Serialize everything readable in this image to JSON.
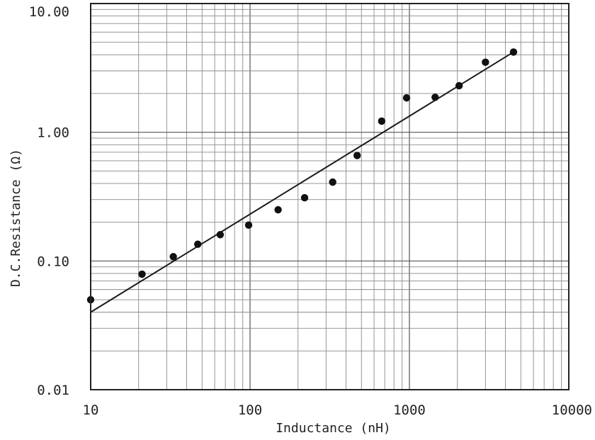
{
  "chart_data": {
    "type": "scatter",
    "xlabel": "Inductance (nH)",
    "ylabel": "D.C.Resistance (Ω)",
    "x_scale": "log",
    "y_scale": "log",
    "xlim": [
      10,
      10000
    ],
    "ylim": [
      0.01,
      10
    ],
    "grid": true,
    "x_ticks": [
      {
        "value": 10,
        "label": "10"
      },
      {
        "value": 100,
        "label": "100"
      },
      {
        "value": 1000,
        "label": "1000"
      },
      {
        "value": 10000,
        "label": "10000"
      }
    ],
    "y_ticks": [
      {
        "value": 0.01,
        "label": "0.01"
      },
      {
        "value": 0.1,
        "label": "0.10"
      },
      {
        "value": 1,
        "label": "1.00"
      },
      {
        "value": 10,
        "label": "10.00"
      }
    ],
    "series": [
      {
        "points": [
          {
            "x": 10,
            "y": 0.05
          },
          {
            "x": 21,
            "y": 0.079
          },
          {
            "x": 33,
            "y": 0.108
          },
          {
            "x": 47,
            "y": 0.135
          },
          {
            "x": 65,
            "y": 0.16
          },
          {
            "x": 98,
            "y": 0.19
          },
          {
            "x": 150,
            "y": 0.25
          },
          {
            "x": 220,
            "y": 0.31
          },
          {
            "x": 330,
            "y": 0.41
          },
          {
            "x": 470,
            "y": 0.66
          },
          {
            "x": 670,
            "y": 1.22
          },
          {
            "x": 960,
            "y": 1.85
          },
          {
            "x": 1450,
            "y": 1.87
          },
          {
            "x": 2050,
            "y": 2.3
          },
          {
            "x": 3000,
            "y": 3.5
          },
          {
            "x": 4500,
            "y": 4.2
          }
        ]
      }
    ],
    "trend_line": [
      {
        "x": 10,
        "y": 0.04
      },
      {
        "x": 4500,
        "y": 4.2
      }
    ]
  }
}
